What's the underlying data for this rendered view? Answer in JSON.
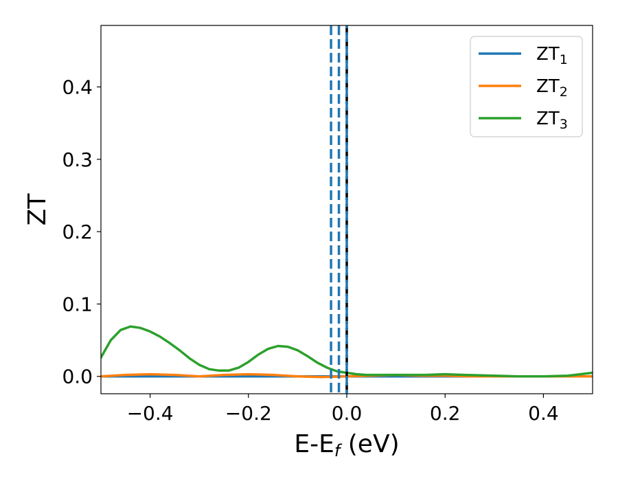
{
  "chart_data": {
    "type": "line",
    "xlabel": "E-E",
    "xlabel_sub": "f",
    "xlabel_unit": " (eV)",
    "ylabel": "ZT",
    "xlim": [
      -0.5,
      0.5
    ],
    "ylim": [
      -0.024,
      0.485
    ],
    "xticks": [
      {
        "value": -0.4,
        "label": "−0.4"
      },
      {
        "value": -0.2,
        "label": "−0.2"
      },
      {
        "value": 0.0,
        "label": "0.0"
      },
      {
        "value": 0.2,
        "label": "0.2"
      },
      {
        "value": 0.4,
        "label": "0.4"
      }
    ],
    "yticks": [
      {
        "value": 0.0,
        "label": "0.0"
      },
      {
        "value": 0.1,
        "label": "0.1"
      },
      {
        "value": 0.2,
        "label": "0.2"
      },
      {
        "value": 0.3,
        "label": "0.3"
      },
      {
        "value": 0.4,
        "label": "0.4"
      }
    ],
    "grid": false,
    "legend_position": "top-right",
    "series": [
      {
        "name": "ZT",
        "sub": "1",
        "color": "#1f77b4",
        "x": [
          -0.5,
          0.0,
          0.5
        ],
        "y": [
          0.0,
          0.0,
          0.0
        ]
      },
      {
        "name": "ZT",
        "sub": "2",
        "color": "#ff7f0e",
        "x": [
          -0.5,
          -0.45,
          -0.4,
          -0.35,
          -0.3,
          -0.25,
          -0.2,
          -0.15,
          -0.1,
          -0.05,
          0.0,
          0.05,
          0.1,
          0.15,
          0.2,
          0.25,
          0.3,
          0.35,
          0.4,
          0.45,
          0.5
        ],
        "y": [
          0.0,
          0.002,
          0.003,
          0.002,
          0.0,
          0.002,
          0.003,
          0.002,
          0.0,
          -0.001,
          0.0,
          0.001,
          0.002,
          0.001,
          0.001,
          0.0,
          0.0,
          0.0,
          0.0,
          0.0,
          0.0
        ]
      },
      {
        "name": "ZT",
        "sub": "3",
        "color": "#2ca02c",
        "x": [
          -0.5,
          -0.48,
          -0.46,
          -0.44,
          -0.42,
          -0.4,
          -0.38,
          -0.36,
          -0.34,
          -0.32,
          -0.3,
          -0.28,
          -0.26,
          -0.24,
          -0.22,
          -0.2,
          -0.18,
          -0.16,
          -0.14,
          -0.12,
          -0.1,
          -0.08,
          -0.06,
          -0.04,
          -0.02,
          0.0,
          0.02,
          0.04,
          0.08,
          0.12,
          0.16,
          0.2,
          0.24,
          0.3,
          0.35,
          0.4,
          0.45,
          0.5
        ],
        "y": [
          0.026,
          0.05,
          0.064,
          0.069,
          0.067,
          0.062,
          0.055,
          0.046,
          0.036,
          0.025,
          0.016,
          0.01,
          0.008,
          0.008,
          0.012,
          0.02,
          0.03,
          0.038,
          0.042,
          0.041,
          0.036,
          0.028,
          0.019,
          0.012,
          0.007,
          0.005,
          0.003,
          0.002,
          0.002,
          0.002,
          0.002,
          0.003,
          0.002,
          0.001,
          0.0,
          0.0,
          0.001,
          0.005
        ]
      }
    ],
    "vlines": [
      {
        "x": -0.032,
        "color": "#1f77b4",
        "style": "dashed"
      },
      {
        "x": -0.016,
        "color": "#1f77b4",
        "style": "dashed"
      },
      {
        "x": 0.0,
        "color": "#000000",
        "style": "dashed"
      },
      {
        "x": 0.0,
        "color": "#1f77b4",
        "style": "dashed-offset"
      }
    ]
  }
}
